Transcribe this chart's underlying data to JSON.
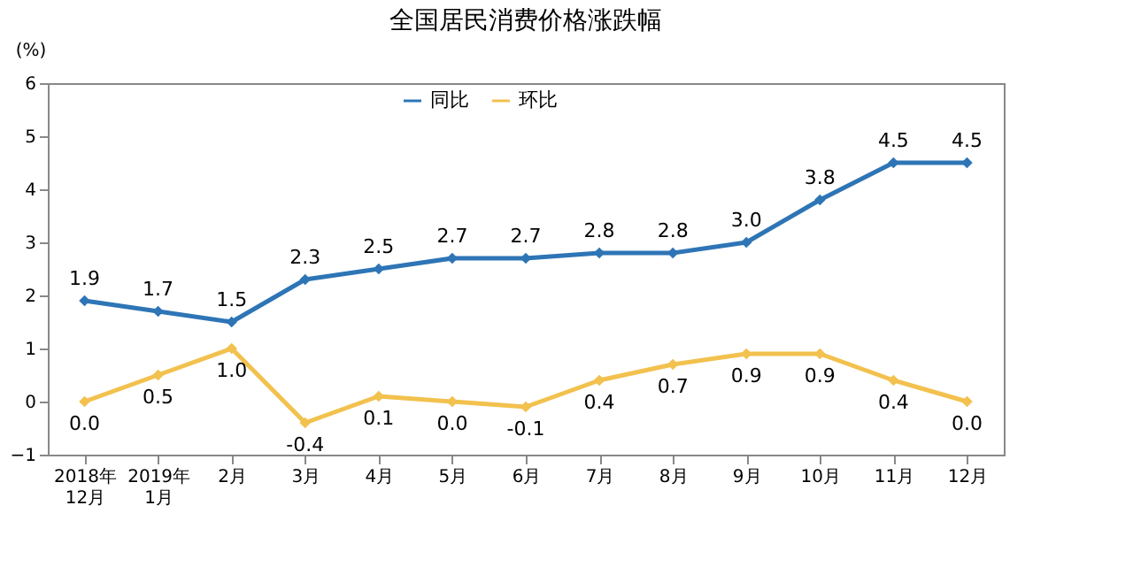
{
  "chart_data": {
    "type": "line",
    "title": "全国居民消费价格涨跌幅",
    "ylabel": "(%)",
    "categories": [
      "2018年\n12月",
      "2019年\n1月",
      "2月",
      "3月",
      "4月",
      "5月",
      "6月",
      "7月",
      "8月",
      "9月",
      "10月",
      "11月",
      "12月"
    ],
    "series": [
      {
        "name": "同比",
        "color": "#2e75b6",
        "values": [
          1.9,
          1.7,
          1.5,
          2.3,
          2.5,
          2.7,
          2.7,
          2.8,
          2.8,
          3.0,
          3.8,
          4.5,
          4.5
        ],
        "value_labels": [
          "1.9",
          "1.7",
          "1.5",
          "2.3",
          "2.5",
          "2.7",
          "2.7",
          "2.8",
          "2.8",
          "3.0",
          "3.8",
          "4.5",
          "4.5"
        ]
      },
      {
        "name": "环比",
        "color": "#f2c14e",
        "values": [
          0.0,
          0.5,
          1.0,
          -0.4,
          0.1,
          0.0,
          -0.1,
          0.4,
          0.7,
          0.9,
          0.9,
          0.4,
          0.0
        ],
        "value_labels": [
          "0.0",
          "0.5",
          "1.0",
          "-0.4",
          "0.1",
          "0.0",
          "-0.1",
          "0.4",
          "0.7",
          "0.9",
          "0.9",
          "0.4",
          "0.0"
        ]
      }
    ],
    "ylim": [
      -1,
      6
    ],
    "yticks": [
      -1,
      0,
      1,
      2,
      3,
      4,
      5,
      6
    ],
    "grid": false,
    "legend": "top",
    "marker": "diamond",
    "line_style": "solid"
  }
}
